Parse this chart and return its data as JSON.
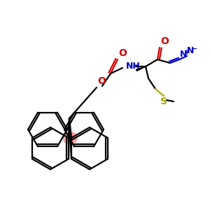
{
  "background": "#ffffff",
  "bond_color": "#000000",
  "red_color": "#cc0000",
  "blue_color": "#0000cc",
  "sulfur_color": "#aaaa00",
  "highlight_color": "#ff8888",
  "figsize": [
    3.0,
    3.0
  ],
  "dpi": 100,
  "xlim": [
    0,
    300
  ],
  "ylim": [
    0,
    300
  ]
}
